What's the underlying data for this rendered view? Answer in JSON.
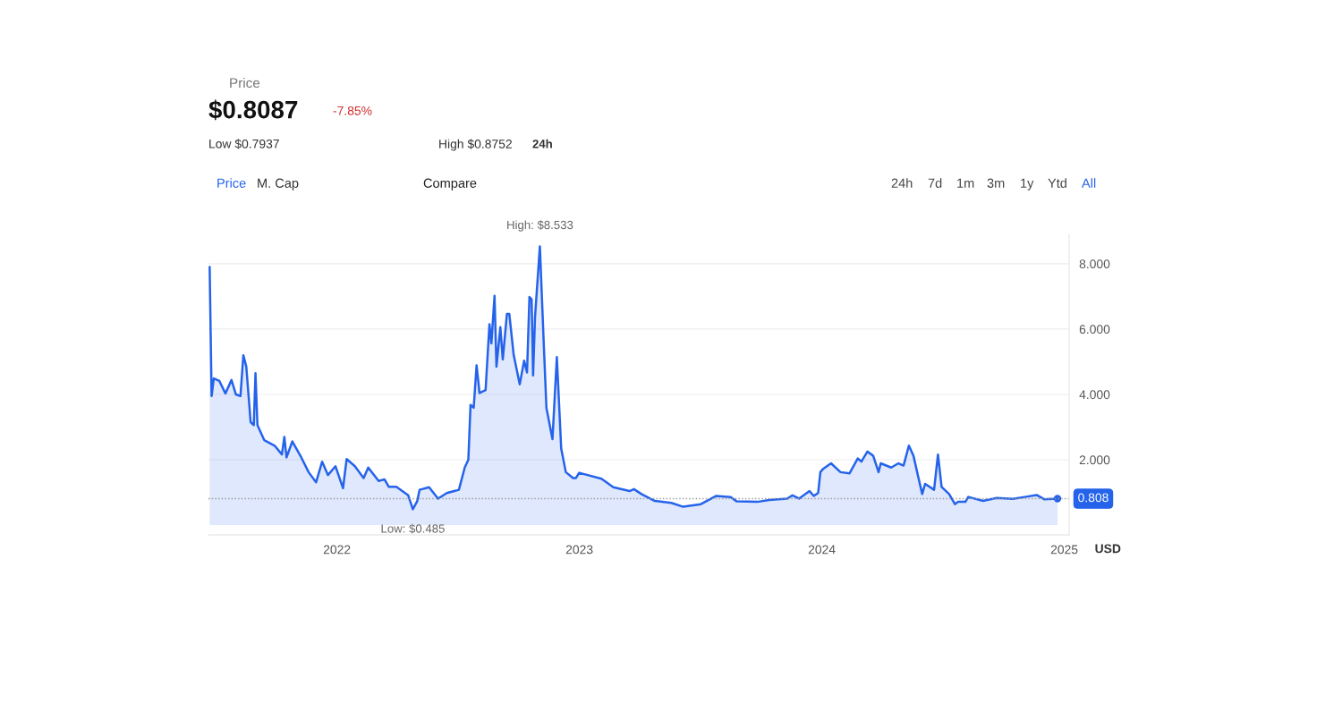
{
  "chart_data": {
    "type": "area",
    "title": "Price",
    "ylabel": "USD",
    "x": [
      2021.475,
      2021.483,
      2021.492,
      2021.515,
      2021.54,
      2021.565,
      2021.583,
      2021.602,
      2021.614,
      2021.626,
      2021.644,
      2021.657,
      2021.664,
      2021.672,
      2021.7,
      2021.743,
      2021.773,
      2021.783,
      2021.792,
      2021.816,
      2021.853,
      2021.883,
      2021.914,
      2021.939,
      2021.963,
      2021.994,
      2022.025,
      2022.04,
      2022.074,
      2022.11,
      2022.129,
      2022.172,
      2022.196,
      2022.214,
      2022.245,
      2022.294,
      2022.313,
      2022.331,
      2022.341,
      2022.38,
      2022.417,
      2022.453,
      2022.503,
      2022.527,
      2022.542,
      2022.551,
      2022.564,
      2022.576,
      2022.588,
      2022.613,
      2022.629,
      2022.637,
      2022.65,
      2022.658,
      2022.674,
      2022.684,
      2022.701,
      2022.711,
      2022.729,
      2022.754,
      2022.772,
      2022.784,
      2022.794,
      2022.803,
      2022.809,
      2022.817,
      2022.837,
      2022.852,
      2022.864,
      2022.889,
      2022.907,
      2022.925,
      2022.944,
      2022.974,
      2022.986,
      2022.999,
      2023.091,
      2023.14,
      2023.207,
      2023.225,
      2023.256,
      2023.311,
      2023.379,
      2023.428,
      2023.501,
      2023.563,
      2023.624,
      2023.648,
      2023.734,
      2023.783,
      2023.857,
      2023.879,
      2023.906,
      2023.949,
      2023.967,
      2023.985,
      2023.994,
      2024.004,
      2024.038,
      2024.077,
      2024.114,
      2024.148,
      2024.163,
      2024.188,
      2024.212,
      2024.234,
      2024.243,
      2024.286,
      2024.316,
      2024.337,
      2024.359,
      2024.378,
      2024.396,
      2024.414,
      2024.426,
      2024.463,
      2024.479,
      2024.494,
      2024.525,
      2024.549,
      2024.561,
      2024.592,
      2024.604,
      2024.665,
      2024.721,
      2024.788,
      2024.837,
      2024.886,
      2024.917,
      2024.972
    ],
    "series": [
      {
        "color": "#2563eb",
        "values": [
          7.9,
          3.95,
          4.49,
          4.41,
          4.03,
          4.44,
          4.0,
          3.95,
          5.2,
          4.85,
          3.15,
          3.06,
          4.65,
          3.06,
          2.6,
          2.43,
          2.16,
          2.7,
          2.07,
          2.56,
          2.07,
          1.62,
          1.31,
          1.94,
          1.53,
          1.8,
          1.13,
          2.02,
          1.8,
          1.44,
          1.76,
          1.35,
          1.4,
          1.17,
          1.17,
          0.91,
          0.485,
          0.73,
          1.08,
          1.16,
          0.81,
          0.98,
          1.08,
          1.76,
          2.0,
          3.68,
          3.59,
          4.89,
          4.04,
          4.13,
          6.15,
          5.56,
          7.02,
          4.85,
          6.06,
          5.07,
          6.46,
          6.46,
          5.21,
          4.31,
          5.03,
          4.67,
          6.98,
          6.91,
          4.58,
          6.37,
          8.533,
          5.74,
          3.59,
          2.63,
          5.14,
          2.34,
          1.62,
          1.44,
          1.44,
          1.6,
          1.42,
          1.16,
          1.04,
          1.1,
          0.95,
          0.74,
          0.68,
          0.56,
          0.64,
          0.89,
          0.86,
          0.73,
          0.71,
          0.77,
          0.81,
          0.91,
          0.81,
          1.04,
          0.89,
          0.99,
          1.62,
          1.71,
          1.89,
          1.62,
          1.58,
          2.04,
          1.94,
          2.25,
          2.12,
          1.62,
          1.89,
          1.76,
          1.89,
          1.82,
          2.43,
          2.12,
          1.53,
          0.95,
          1.26,
          1.08,
          2.16,
          1.17,
          0.95,
          0.64,
          0.71,
          0.71,
          0.86,
          0.74,
          0.83,
          0.8,
          0.86,
          0.92,
          0.79,
          0.808
        ]
      }
    ],
    "xlim": [
      2021.47,
      2025.02
    ],
    "xticks": [
      2022,
      2023,
      2024,
      2025
    ],
    "ylim": [
      -0.3,
      8.9
    ],
    "yticks": [
      {
        "value": 2,
        "label": "2.000"
      },
      {
        "value": 4,
        "label": "4.000"
      },
      {
        "value": 6,
        "label": "6.000"
      },
      {
        "value": 8,
        "label": "8.000"
      }
    ],
    "grid": "y",
    "legend": false,
    "ref_lines": [
      {
        "axis": "y",
        "value": 0.808,
        "label": "0.808",
        "color": "#999999",
        "line_style": "dotted"
      }
    ],
    "annotations": [
      {
        "text": "High: $8.533",
        "x": 2022.837,
        "y": 8.533
      },
      {
        "text": "Low: $0.485",
        "x": 2022.313,
        "y": 0.485
      },
      "$0.8087",
      "-7.85%",
      "Low $0.7937",
      "High $0.8752",
      "24h",
      "Price",
      "M. Cap",
      "Compare",
      "24h",
      "7d",
      "1m",
      "3m",
      "1y",
      "Ytd",
      "All"
    ]
  }
}
